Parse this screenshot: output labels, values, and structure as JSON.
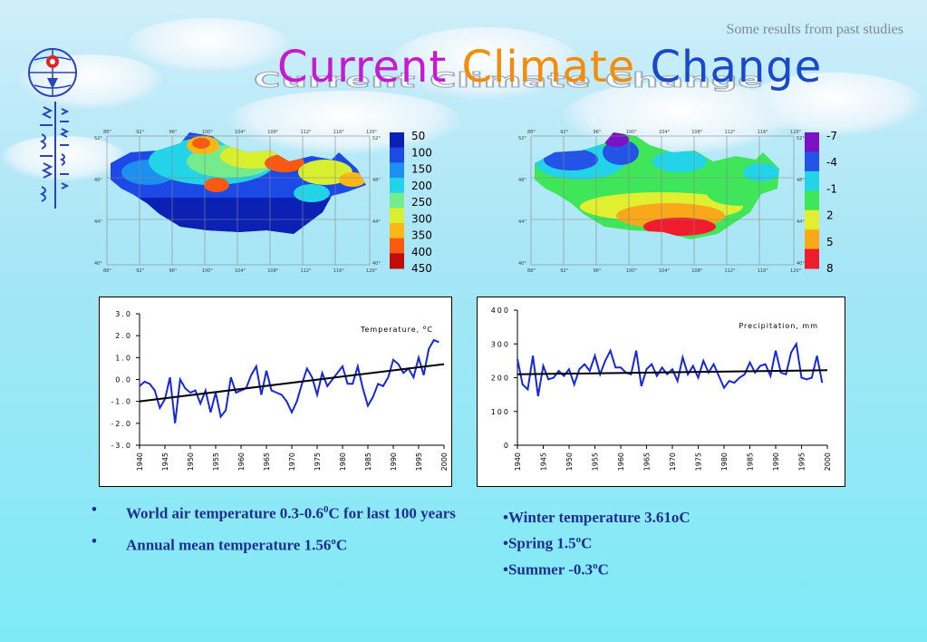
{
  "subtitle": "Some results from past studies",
  "title": {
    "words": [
      {
        "text": "Current",
        "color": "#c61ad1"
      },
      {
        "text": "Climate",
        "color": "#f38b0b"
      },
      {
        "text": "Change",
        "color": "#1a49c9"
      }
    ],
    "full": "Current Climate Change"
  },
  "logo": {
    "icon": "mongolian-institute-logo",
    "script": "ᠮᠣᠩᠭᠣᠯ"
  },
  "maps": [
    {
      "name": "temperature-map",
      "legend_values": [
        "50",
        "100",
        "150",
        "200",
        "250",
        "300",
        "350",
        "400",
        "450"
      ],
      "legend_colors": [
        "#0a21b4",
        "#1d49e6",
        "#1d8ff0",
        "#23d3e8",
        "#74ec8e",
        "#d8ef2f",
        "#fbb617",
        "#f85a12",
        "#c20c0c"
      ],
      "lon_ticks": [
        "88°",
        "92°",
        "96°",
        "100°",
        "104°",
        "108°",
        "112°",
        "116°",
        "120°"
      ],
      "lat_ticks": [
        "52°",
        "48°",
        "44°",
        "40°"
      ]
    },
    {
      "name": "change-map",
      "legend_values": [
        "-7",
        "-4",
        "-1",
        "2",
        "5",
        "8"
      ],
      "legend_colors": [
        "#7a12c4",
        "#2354e6",
        "#23d3e8",
        "#3fe65a",
        "#e0ef2f",
        "#f8a818",
        "#ee1c2c"
      ],
      "lon_ticks": [
        "88°",
        "92°",
        "96°",
        "100°",
        "104°",
        "108°",
        "112°",
        "116°",
        "120°"
      ],
      "lat_ticks": [
        "52°",
        "48°",
        "44°",
        "40°"
      ]
    }
  ],
  "chart_data": [
    {
      "type": "line",
      "title": "Temperature, °C",
      "label_prefix": "Temperature, ",
      "label_unit": "o",
      "label_suffix": "C",
      "x": [
        1940,
        1941,
        1942,
        1943,
        1944,
        1945,
        1946,
        1947,
        1948,
        1949,
        1950,
        1951,
        1952,
        1953,
        1954,
        1955,
        1956,
        1957,
        1958,
        1959,
        1960,
        1961,
        1962,
        1963,
        1964,
        1965,
        1966,
        1967,
        1968,
        1969,
        1970,
        1971,
        1972,
        1973,
        1974,
        1975,
        1976,
        1977,
        1978,
        1979,
        1980,
        1981,
        1982,
        1983,
        1984,
        1985,
        1986,
        1987,
        1988,
        1989,
        1990,
        1991,
        1992,
        1993,
        1994,
        1995,
        1996,
        1997,
        1998,
        1999
      ],
      "y": [
        -0.3,
        -0.1,
        -0.2,
        -0.5,
        -1.3,
        -0.9,
        0.1,
        -2.0,
        0.0,
        -0.4,
        -0.6,
        -0.5,
        -1.1,
        -0.5,
        -1.5,
        -0.6,
        -1.7,
        -1.4,
        0.1,
        -0.6,
        -0.5,
        -0.4,
        0.2,
        0.6,
        -0.7,
        0.4,
        -0.5,
        -0.6,
        -0.7,
        -1.0,
        -1.5,
        -1.0,
        -0.2,
        0.5,
        0.1,
        -0.7,
        0.3,
        -0.3,
        0.0,
        0.3,
        0.6,
        -0.2,
        -0.2,
        0.6,
        -0.4,
        -1.2,
        -0.8,
        -0.2,
        -0.3,
        0.1,
        0.9,
        0.7,
        0.3,
        0.5,
        0.1,
        1.0,
        0.2,
        1.4,
        1.8,
        1.7
      ],
      "trend": [
        [
          1940,
          -1.0
        ],
        [
          2000,
          0.7
        ]
      ],
      "ylim": [
        -3.0,
        3.0
      ],
      "yticks": [
        "3.0",
        "2.0",
        "1.0",
        "0.0",
        "-1.0",
        "-2.0",
        "-3.0"
      ],
      "xticks": [
        "1940",
        "1945",
        "1950",
        "1955",
        "1960",
        "1965",
        "1970",
        "1975",
        "1980",
        "1985",
        "1990",
        "1995",
        "2000"
      ],
      "line_color": "#1628d8"
    },
    {
      "type": "line",
      "title": "Precipitation, mm",
      "x": [
        1940,
        1941,
        1942,
        1943,
        1944,
        1945,
        1946,
        1947,
        1948,
        1949,
        1950,
        1951,
        1952,
        1953,
        1954,
        1955,
        1956,
        1957,
        1958,
        1959,
        1960,
        1961,
        1962,
        1963,
        1964,
        1965,
        1966,
        1967,
        1968,
        1969,
        1970,
        1971,
        1972,
        1973,
        1974,
        1975,
        1976,
        1977,
        1978,
        1979,
        1980,
        1981,
        1982,
        1983,
        1984,
        1985,
        1986,
        1987,
        1988,
        1989,
        1990,
        1991,
        1992,
        1993,
        1994,
        1995,
        1996,
        1997,
        1998,
        1999
      ],
      "y": [
        255,
        180,
        165,
        265,
        145,
        235,
        195,
        200,
        220,
        205,
        225,
        180,
        225,
        240,
        220,
        265,
        210,
        250,
        280,
        230,
        230,
        215,
        210,
        280,
        175,
        225,
        240,
        205,
        230,
        210,
        225,
        190,
        260,
        210,
        235,
        200,
        250,
        215,
        240,
        205,
        170,
        190,
        185,
        200,
        210,
        245,
        215,
        235,
        240,
        205,
        280,
        215,
        210,
        275,
        300,
        200,
        195,
        200,
        265,
        185
      ],
      "trend": [
        [
          1940,
          210
        ],
        [
          2000,
          222
        ]
      ],
      "ylim": [
        0,
        400
      ],
      "yticks": [
        "400",
        "300",
        "200",
        "100",
        "0"
      ],
      "xticks": [
        "1940",
        "1945",
        "1950",
        "1955",
        "1960",
        "1965",
        "1970",
        "1975",
        "1980",
        "1985",
        "1990",
        "1995",
        "2000"
      ],
      "line_color": "#1628d8"
    }
  ],
  "bullets_left": [
    {
      "dot": "•",
      "text": "World air temperature 0.3-0.6",
      "sup": "0",
      "tail": "C for last 100 years"
    },
    {
      "dot": "•",
      "text": "Annual mean temperature 1.56",
      "sup": "o",
      "tail": "C"
    }
  ],
  "bullets_right": [
    {
      "text": "•Winter temperature 3.61oC",
      "sup": "",
      "tail": ""
    },
    {
      "text": "•Spring 1.5",
      "sup": "o",
      "tail": "C"
    },
    {
      "text": "•Summer -0.3",
      "sup": "o",
      "tail": "C"
    }
  ]
}
